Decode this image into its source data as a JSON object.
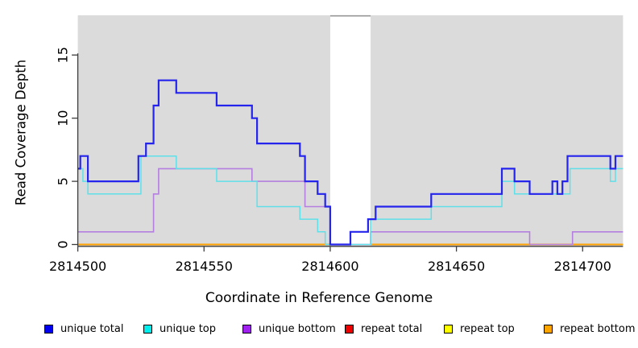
{
  "figure": {
    "xlabel": "Coordinate in Reference Genome",
    "ylabel": "Read Coverage Depth"
  },
  "chart_data": {
    "type": "line",
    "subtype": "step",
    "title": "",
    "xlabel": "Coordinate in Reference Genome",
    "ylabel": "Read Coverage Depth",
    "xlim": [
      2814500,
      2814716
    ],
    "ylim": [
      0,
      18
    ],
    "xticks": [
      2814500,
      2814550,
      2814600,
      2814650,
      2814700
    ],
    "yticks": [
      0,
      5,
      10,
      15
    ],
    "grid": false,
    "legend_position": "bottom",
    "page_bg": "#FFFFFF",
    "panel_bg": "#DBDBDB",
    "axis_color": "#3d3d3d",
    "masked_region": {
      "start": 2814600,
      "end": 2814616,
      "fill": "#FFFFFF",
      "top_edge_color": "#979797"
    },
    "series": [
      {
        "name": "unique total",
        "legend_color": "#0000EE",
        "line_color": "#2424EC",
        "line_width": 2.2,
        "points": [
          [
            2814500,
            6
          ],
          [
            2814501,
            7
          ],
          [
            2814504,
            5
          ],
          [
            2814524,
            7
          ],
          [
            2814527,
            8
          ],
          [
            2814530,
            11
          ],
          [
            2814532,
            13
          ],
          [
            2814539,
            12
          ],
          [
            2814555,
            11
          ],
          [
            2814569,
            10
          ],
          [
            2814571,
            8
          ],
          [
            2814588,
            7
          ],
          [
            2814590,
            5
          ],
          [
            2814595,
            4
          ],
          [
            2814598,
            3
          ],
          [
            2814600,
            0
          ],
          [
            2814608,
            1
          ],
          [
            2814615,
            2
          ],
          [
            2814618,
            3
          ],
          [
            2814640,
            4
          ],
          [
            2814668,
            6
          ],
          [
            2814673,
            5
          ],
          [
            2814679,
            4
          ],
          [
            2814688,
            5
          ],
          [
            2814690,
            4
          ],
          [
            2814692,
            5
          ],
          [
            2814694,
            7
          ],
          [
            2814711,
            6
          ],
          [
            2814713,
            7
          ],
          [
            2814716,
            7
          ]
        ]
      },
      {
        "name": "unique top",
        "legend_color": "#00EEEE",
        "line_color": "#5FE0E8",
        "line_width": 1.5,
        "points": [
          [
            2814500,
            6
          ],
          [
            2814502,
            5
          ],
          [
            2814504,
            4
          ],
          [
            2814525,
            7
          ],
          [
            2814539,
            6
          ],
          [
            2814555,
            5
          ],
          [
            2814571,
            3
          ],
          [
            2814588,
            2
          ],
          [
            2814595,
            1
          ],
          [
            2814598,
            0
          ],
          [
            2814616,
            2
          ],
          [
            2814640,
            3
          ],
          [
            2814668,
            5
          ],
          [
            2814673,
            4
          ],
          [
            2814695,
            6
          ],
          [
            2814711,
            5
          ],
          [
            2814713,
            6
          ],
          [
            2814716,
            6
          ]
        ]
      },
      {
        "name": "unique bottom",
        "legend_color": "#A020F0",
        "line_color": "#B47FDF",
        "line_width": 1.6,
        "points": [
          [
            2814500,
            1
          ],
          [
            2814530,
            4
          ],
          [
            2814532,
            6
          ],
          [
            2814569,
            5
          ],
          [
            2814590,
            3
          ],
          [
            2814600,
            0
          ],
          [
            2814616,
            1
          ],
          [
            2814679,
            0
          ],
          [
            2814696,
            1
          ],
          [
            2814716,
            1
          ]
        ]
      },
      {
        "name": "repeat total",
        "legend_color": "#EE0000",
        "line_color": "#EE0000",
        "line_width": 1.5,
        "points": [
          [
            2814500,
            0
          ],
          [
            2814716,
            0
          ]
        ]
      },
      {
        "name": "repeat top",
        "legend_color": "#FFFF00",
        "line_color": "#FFFF00",
        "line_width": 1.5,
        "points": [
          [
            2814500,
            0
          ],
          [
            2814716,
            0
          ]
        ]
      },
      {
        "name": "repeat bottom",
        "legend_color": "#FFA500",
        "line_color": "#FF9F00",
        "line_width": 2,
        "points": [
          [
            2814500,
            0
          ],
          [
            2814716,
            0
          ]
        ]
      }
    ],
    "legend": [
      {
        "label": "unique total",
        "color": "#0000EE"
      },
      {
        "label": "unique top",
        "color": "#00EEEE"
      },
      {
        "label": "unique bottom",
        "color": "#A020F0"
      },
      {
        "label": "repeat total",
        "color": "#EE0000"
      },
      {
        "label": "repeat top",
        "color": "#FFFF00"
      },
      {
        "label": "repeat bottom",
        "color": "#FFA500"
      }
    ]
  }
}
